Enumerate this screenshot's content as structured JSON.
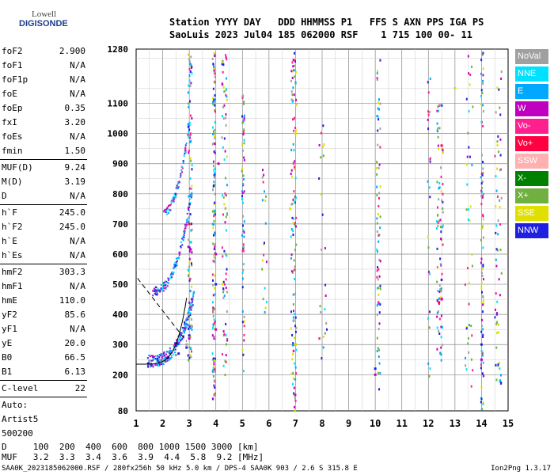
{
  "logo": {
    "line1": "Lowell",
    "line2": "DIGISONDE"
  },
  "header": {
    "line1": "Station YYYY DAY   DDD HHMMSS P1   FFS S AXN PPS IGA PS",
    "line2": "SaoLuis 2023 Jul04 185 062000 RSF    1 715 100 00- 11"
  },
  "params_a": [
    {
      "name": "foF2",
      "value": "2.900"
    },
    {
      "name": "foF1",
      "value": "N/A"
    },
    {
      "name": "foF1p",
      "value": "N/A"
    },
    {
      "name": "foE",
      "value": "N/A"
    },
    {
      "name": "foEp",
      "value": "0.35"
    },
    {
      "name": "fxI",
      "value": "3.20"
    },
    {
      "name": "foEs",
      "value": "N/A"
    },
    {
      "name": "fmin",
      "value": "1.50"
    }
  ],
  "params_b": [
    {
      "name": "MUF(D)",
      "value": "9.24"
    },
    {
      "name": "M(D)",
      "value": "3.19"
    },
    {
      "name": "D",
      "value": "N/A"
    }
  ],
  "params_c": [
    {
      "name": "h`F",
      "value": "245.0"
    },
    {
      "name": "h`F2",
      "value": "245.0"
    },
    {
      "name": "h`E",
      "value": "N/A"
    },
    {
      "name": "h`Es",
      "value": "N/A"
    }
  ],
  "params_d": [
    {
      "name": "hmF2",
      "value": "303.3"
    },
    {
      "name": "hmF1",
      "value": "N/A"
    },
    {
      "name": "hmE",
      "value": "110.0"
    },
    {
      "name": "yF2",
      "value": "85.6"
    },
    {
      "name": "yF1",
      "value": "N/A"
    },
    {
      "name": "yE",
      "value": "20.0"
    },
    {
      "name": "B0",
      "value": "66.5"
    },
    {
      "name": "B1",
      "value": "6.13"
    }
  ],
  "params_e": [
    {
      "name": "C-level",
      "value": "22"
    }
  ],
  "autoscale": {
    "line1": "Auto:",
    "line2": "Artist5",
    "line3": "500200"
  },
  "legend": [
    {
      "label": "NoVal",
      "color": "#a0a0a0"
    },
    {
      "label": "NNE",
      "color": "#00e0ff"
    },
    {
      "label": "E",
      "color": "#00a8ff"
    },
    {
      "label": "W",
      "color": "#c000c0"
    },
    {
      "label": "Vo-",
      "color": "#ff2090"
    },
    {
      "label": "Vo+",
      "color": "#ff0040"
    },
    {
      "label": "SSW",
      "color": "#ffb0b0"
    },
    {
      "label": "X-",
      "color": "#008000"
    },
    {
      "label": "X+",
      "color": "#70b040"
    },
    {
      "label": "SSE",
      "color": "#e0e000"
    },
    {
      "label": "NNW",
      "color": "#2020e0"
    }
  ],
  "dm_table": {
    "d_line": "D     100  200  400  600  800 1000 1500 3000 [km]",
    "muf_line": "MUF   3.2  3.3  3.4  3.6  3.9  4.4  5.8  9.2 [MHz]"
  },
  "footer": {
    "left": "SAA0K_2023185062000.RSF / 280fx256h 50 kHz 5.0 km / DPS-4 SAA0K 903 / 2.6 S 315.8 E",
    "right": "Ion2Png 1.3.17"
  },
  "chart_data": {
    "type": "scatter",
    "title": "",
    "xlabel": "",
    "ylabel": "",
    "xlim": [
      1,
      15
    ],
    "ylim": [
      80,
      1280
    ],
    "x_ticks": [
      1,
      2,
      3,
      4,
      5,
      6,
      7,
      8,
      9,
      10,
      11,
      12,
      13,
      14,
      15
    ],
    "y_ticks": [
      80,
      200,
      300,
      400,
      500,
      600,
      700,
      800,
      900,
      1000,
      1100,
      1280
    ],
    "grid": true,
    "series": [
      {
        "name": "NoVal",
        "x": [
          1.5,
          2.0,
          2.5,
          2.9,
          3.1
        ],
        "y": [
          245,
          250,
          265,
          300,
          360
        ]
      },
      {
        "name": "W",
        "x": [
          3.0,
          3.1,
          4.0,
          4.0,
          4.1,
          7.0,
          10.0,
          12.5,
          14.0
        ],
        "y": [
          320,
          450,
          350,
          600,
          900,
          300,
          200,
          450,
          250
        ]
      },
      {
        "name": "NNW",
        "x": [
          2.2,
          2.6,
          2.9,
          3.0,
          4.0,
          10.0,
          14.0
        ],
        "y": [
          255,
          270,
          290,
          330,
          500,
          220,
          300
        ]
      },
      {
        "name": "SSE",
        "x": [
          7.0,
          6.8,
          7.0,
          13.0
        ],
        "y": [
          300,
          750,
          1000,
          1150
        ]
      },
      {
        "name": "Vo+",
        "x": [
          12.5,
          12.4,
          3.0
        ],
        "y": [
          960,
          440,
          700
        ]
      }
    ],
    "annotations": []
  }
}
